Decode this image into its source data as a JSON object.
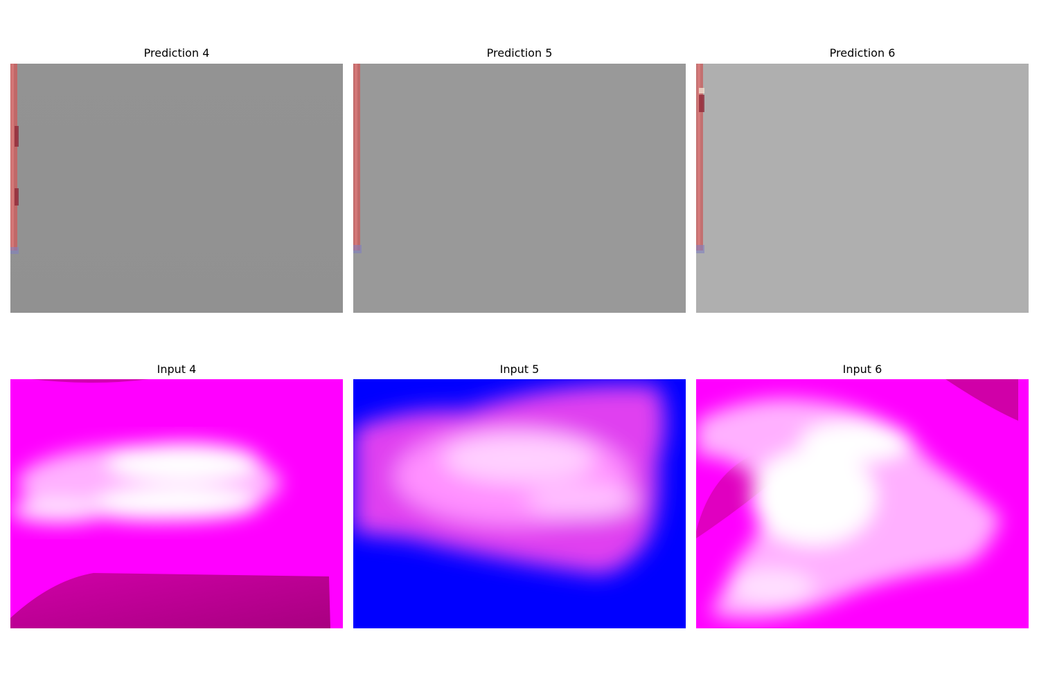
{
  "panels": [
    {
      "title": "Prediction 4",
      "kind": "prediction",
      "base_color": "#929292"
    },
    {
      "title": "Prediction 5",
      "kind": "prediction",
      "base_color": "#999999"
    },
    {
      "title": "Prediction 6",
      "kind": "prediction",
      "base_color": "#afafaf"
    },
    {
      "title": "Input 4",
      "kind": "input",
      "base_color": "#ff00ff"
    },
    {
      "title": "Input 5",
      "kind": "input",
      "base_color": "#0000ff"
    },
    {
      "title": "Input 6",
      "kind": "input",
      "base_color": "#ff00ff"
    }
  ]
}
